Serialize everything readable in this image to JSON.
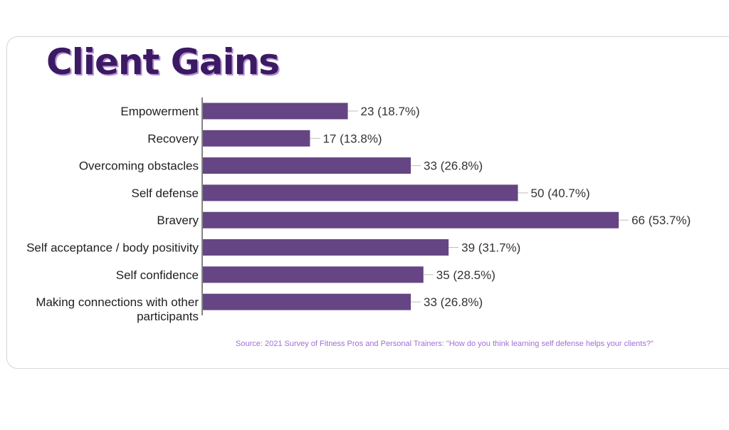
{
  "title": "Client Gains",
  "source": "Source: 2021 Survey  of Fitness Pros and Personal Trainers: \"How do you think learning self defense helps your clients?\"",
  "colors": {
    "bar": "#654583",
    "title": "#3b1a63",
    "title_shadow": "#b58fd3",
    "source": "#a070d6"
  },
  "chart_data": {
    "type": "bar",
    "orientation": "horizontal",
    "title": "Client Gains",
    "categories": [
      "Empowerment",
      "Recovery",
      "Overcoming obstacles",
      "Self defense",
      "Bravery",
      "Self acceptance / body positivity",
      "Self confidence",
      "Making connections with other participants"
    ],
    "category_lines": [
      [
        "Empowerment"
      ],
      [
        "Recovery"
      ],
      [
        "Overcoming obstacles"
      ],
      [
        "Self defense"
      ],
      [
        "Bravery"
      ],
      [
        "Self acceptance / body positivity"
      ],
      [
        "Self confidence"
      ],
      [
        "Making connections with other",
        "participants"
      ]
    ],
    "values": [
      23,
      17,
      33,
      50,
      66,
      39,
      35,
      33
    ],
    "percents": [
      18.7,
      13.8,
      26.8,
      40.7,
      53.7,
      31.7,
      28.5,
      26.8
    ],
    "data_labels": [
      "23 (18.7%)",
      "17 (13.8%)",
      "33 (26.8%)",
      "50 (40.7%)",
      "66 (53.7%)",
      "39 (31.7%)",
      "35 (28.5%)",
      "33 (26.8%)"
    ],
    "xlim": [
      0,
      80
    ],
    "grid": false,
    "legend": "none"
  }
}
